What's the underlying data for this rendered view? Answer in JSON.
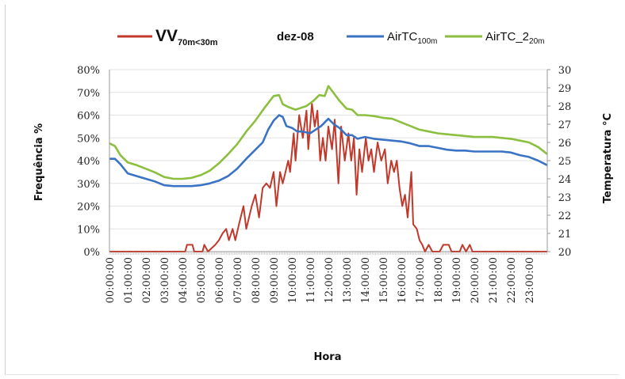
{
  "chart_data": {
    "type": "line",
    "title": "dez-08",
    "xlabel": "Hora",
    "ylabel_left": "Frequência %",
    "ylabel_right": "Temperatura °C",
    "y_left_ticks": [
      "0%",
      "10%",
      "20%",
      "30%",
      "40%",
      "50%",
      "60%",
      "70%",
      "80%"
    ],
    "y_left_range": [
      0,
      80
    ],
    "y_right_ticks": [
      "20",
      "21",
      "22",
      "23",
      "24",
      "25",
      "26",
      "27",
      "28",
      "29",
      "30"
    ],
    "y_right_range": [
      20,
      30
    ],
    "x_ticks": [
      "00:00:00",
      "01:00:00",
      "02:00:00",
      "03:00:00",
      "04:00:00",
      "05:00:00",
      "06:00:00",
      "07:00:00",
      "08:00:00",
      "09:00:00",
      "10:00:00",
      "11:00:00",
      "12:00:00",
      "13:00:00",
      "14:00:00",
      "15:00:00",
      "16:00:00",
      "17:00:00",
      "18:00:00",
      "19:00:00",
      "20:00:00",
      "21:00:00",
      "22:00:00",
      "23:00:00"
    ],
    "x_hours": [
      0,
      24
    ],
    "legend_position": "top",
    "legend": [
      {
        "name": "VV",
        "sub": "70m<30m",
        "color": "#c0392b"
      },
      {
        "name": "dez-08",
        "sub": "",
        "color": ""
      },
      {
        "name": "AirTC",
        "sub": "100m",
        "color": "#3a73c4"
      },
      {
        "name": "AirTC_2",
        "sub": "20m",
        "color": "#8cbf3f"
      }
    ],
    "series": [
      {
        "name": "VV 70m<30m",
        "axis": "left",
        "color": "#c0392b",
        "points": [
          [
            0,
            0
          ],
          [
            4,
            0
          ],
          [
            4.15,
            0
          ],
          [
            4.25,
            3
          ],
          [
            4.55,
            3
          ],
          [
            4.65,
            0
          ],
          [
            5.1,
            0
          ],
          [
            5.2,
            3
          ],
          [
            5.4,
            0
          ],
          [
            5.8,
            3
          ],
          [
            6.0,
            5
          ],
          [
            6.2,
            8
          ],
          [
            6.4,
            10
          ],
          [
            6.55,
            5
          ],
          [
            6.75,
            10
          ],
          [
            6.9,
            5
          ],
          [
            7.1,
            12
          ],
          [
            7.35,
            20
          ],
          [
            7.5,
            10
          ],
          [
            7.8,
            20
          ],
          [
            8.0,
            25
          ],
          [
            8.2,
            15
          ],
          [
            8.4,
            28
          ],
          [
            8.6,
            30
          ],
          [
            8.8,
            28
          ],
          [
            9.0,
            35
          ],
          [
            9.15,
            20
          ],
          [
            9.35,
            35
          ],
          [
            9.5,
            30
          ],
          [
            9.8,
            40
          ],
          [
            9.9,
            35
          ],
          [
            10.1,
            52
          ],
          [
            10.2,
            40
          ],
          [
            10.4,
            60
          ],
          [
            10.6,
            50
          ],
          [
            10.8,
            62
          ],
          [
            10.9,
            45
          ],
          [
            11.1,
            65
          ],
          [
            11.25,
            55
          ],
          [
            11.4,
            62
          ],
          [
            11.55,
            40
          ],
          [
            11.7,
            50
          ],
          [
            11.85,
            40
          ],
          [
            12.0,
            55
          ],
          [
            12.2,
            45
          ],
          [
            12.35,
            58
          ],
          [
            12.55,
            30
          ],
          [
            12.7,
            55
          ],
          [
            12.9,
            40
          ],
          [
            13.1,
            52
          ],
          [
            13.25,
            40
          ],
          [
            13.4,
            50
          ],
          [
            13.55,
            25
          ],
          [
            13.7,
            45
          ],
          [
            13.85,
            35
          ],
          [
            14.05,
            50
          ],
          [
            14.2,
            40
          ],
          [
            14.35,
            45
          ],
          [
            14.5,
            35
          ],
          [
            14.7,
            48
          ],
          [
            14.9,
            40
          ],
          [
            15.1,
            45
          ],
          [
            15.25,
            30
          ],
          [
            15.45,
            40
          ],
          [
            15.6,
            35
          ],
          [
            15.75,
            40
          ],
          [
            15.9,
            28
          ],
          [
            16.05,
            20
          ],
          [
            16.2,
            25
          ],
          [
            16.35,
            15
          ],
          [
            16.55,
            35
          ],
          [
            16.65,
            12
          ],
          [
            16.85,
            10
          ],
          [
            17.0,
            5
          ],
          [
            17.15,
            3
          ],
          [
            17.3,
            0
          ],
          [
            17.5,
            3
          ],
          [
            17.7,
            0
          ],
          [
            18.1,
            0
          ],
          [
            18.3,
            3
          ],
          [
            18.6,
            3
          ],
          [
            18.75,
            0
          ],
          [
            19.2,
            0
          ],
          [
            19.35,
            3
          ],
          [
            19.55,
            0
          ],
          [
            19.75,
            3
          ],
          [
            19.9,
            0
          ],
          [
            24,
            0
          ]
        ]
      },
      {
        "name": "AirTC 100m",
        "axis": "right",
        "color": "#3a73c4",
        "points": [
          [
            0,
            25.1
          ],
          [
            0.3,
            25.1
          ],
          [
            0.6,
            24.8
          ],
          [
            1.0,
            24.3
          ],
          [
            1.5,
            24.15
          ],
          [
            2.0,
            24.0
          ],
          [
            2.5,
            23.85
          ],
          [
            3.0,
            23.65
          ],
          [
            3.5,
            23.6
          ],
          [
            4.0,
            23.6
          ],
          [
            4.5,
            23.6
          ],
          [
            5.0,
            23.65
          ],
          [
            5.5,
            23.75
          ],
          [
            6.0,
            23.9
          ],
          [
            6.5,
            24.15
          ],
          [
            7.0,
            24.55
          ],
          [
            7.5,
            25.1
          ],
          [
            8.0,
            25.6
          ],
          [
            8.4,
            26.0
          ],
          [
            8.7,
            26.7
          ],
          [
            9.0,
            27.2
          ],
          [
            9.3,
            27.5
          ],
          [
            9.5,
            27.4
          ],
          [
            9.7,
            26.9
          ],
          [
            10.0,
            26.8
          ],
          [
            10.3,
            26.6
          ],
          [
            10.6,
            26.6
          ],
          [
            11.0,
            26.5
          ],
          [
            11.3,
            26.7
          ],
          [
            11.6,
            26.9
          ],
          [
            12.0,
            27.3
          ],
          [
            12.3,
            27.0
          ],
          [
            12.6,
            26.8
          ],
          [
            13.0,
            26.4
          ],
          [
            13.3,
            26.4
          ],
          [
            13.6,
            26.2
          ],
          [
            14.0,
            26.3
          ],
          [
            14.5,
            26.2
          ],
          [
            15.0,
            26.15
          ],
          [
            15.5,
            26.1
          ],
          [
            16.0,
            26.05
          ],
          [
            16.5,
            25.95
          ],
          [
            17.0,
            25.8
          ],
          [
            17.5,
            25.8
          ],
          [
            18.0,
            25.7
          ],
          [
            18.5,
            25.6
          ],
          [
            19.0,
            25.55
          ],
          [
            19.5,
            25.55
          ],
          [
            20.0,
            25.5
          ],
          [
            20.5,
            25.5
          ],
          [
            21.0,
            25.5
          ],
          [
            21.5,
            25.5
          ],
          [
            22.0,
            25.45
          ],
          [
            22.5,
            25.3
          ],
          [
            23.0,
            25.2
          ],
          [
            23.5,
            25.0
          ],
          [
            24,
            24.75
          ]
        ]
      },
      {
        "name": "AirTC_2 20m",
        "axis": "right",
        "color": "#8cbf3f",
        "points": [
          [
            0,
            25.95
          ],
          [
            0.3,
            25.8
          ],
          [
            0.6,
            25.3
          ],
          [
            1.0,
            24.9
          ],
          [
            1.5,
            24.75
          ],
          [
            2.0,
            24.55
          ],
          [
            2.5,
            24.35
          ],
          [
            3.0,
            24.1
          ],
          [
            3.5,
            24.0
          ],
          [
            4.0,
            24.0
          ],
          [
            4.5,
            24.05
          ],
          [
            5.0,
            24.2
          ],
          [
            5.5,
            24.45
          ],
          [
            6.0,
            24.85
          ],
          [
            6.5,
            25.35
          ],
          [
            7.0,
            25.9
          ],
          [
            7.5,
            26.6
          ],
          [
            8.0,
            27.2
          ],
          [
            8.5,
            27.9
          ],
          [
            9.0,
            28.55
          ],
          [
            9.3,
            28.6
          ],
          [
            9.5,
            28.1
          ],
          [
            9.8,
            27.95
          ],
          [
            10.2,
            27.8
          ],
          [
            10.5,
            27.9
          ],
          [
            10.8,
            28.0
          ],
          [
            11.2,
            28.3
          ],
          [
            11.5,
            28.6
          ],
          [
            11.8,
            28.55
          ],
          [
            12.0,
            29.1
          ],
          [
            12.3,
            28.7
          ],
          [
            12.6,
            28.3
          ],
          [
            13.0,
            27.85
          ],
          [
            13.3,
            27.8
          ],
          [
            13.6,
            27.5
          ],
          [
            14.0,
            27.5
          ],
          [
            14.5,
            27.45
          ],
          [
            15.0,
            27.35
          ],
          [
            15.5,
            27.3
          ],
          [
            16.0,
            27.1
          ],
          [
            16.5,
            26.9
          ],
          [
            17.0,
            26.7
          ],
          [
            17.5,
            26.6
          ],
          [
            18.0,
            26.5
          ],
          [
            18.5,
            26.45
          ],
          [
            19.0,
            26.4
          ],
          [
            19.5,
            26.35
          ],
          [
            20.0,
            26.3
          ],
          [
            20.5,
            26.3
          ],
          [
            21.0,
            26.3
          ],
          [
            21.5,
            26.25
          ],
          [
            22.0,
            26.2
          ],
          [
            22.5,
            26.1
          ],
          [
            23.0,
            26.0
          ],
          [
            23.5,
            25.75
          ],
          [
            24,
            25.35
          ]
        ]
      }
    ]
  }
}
